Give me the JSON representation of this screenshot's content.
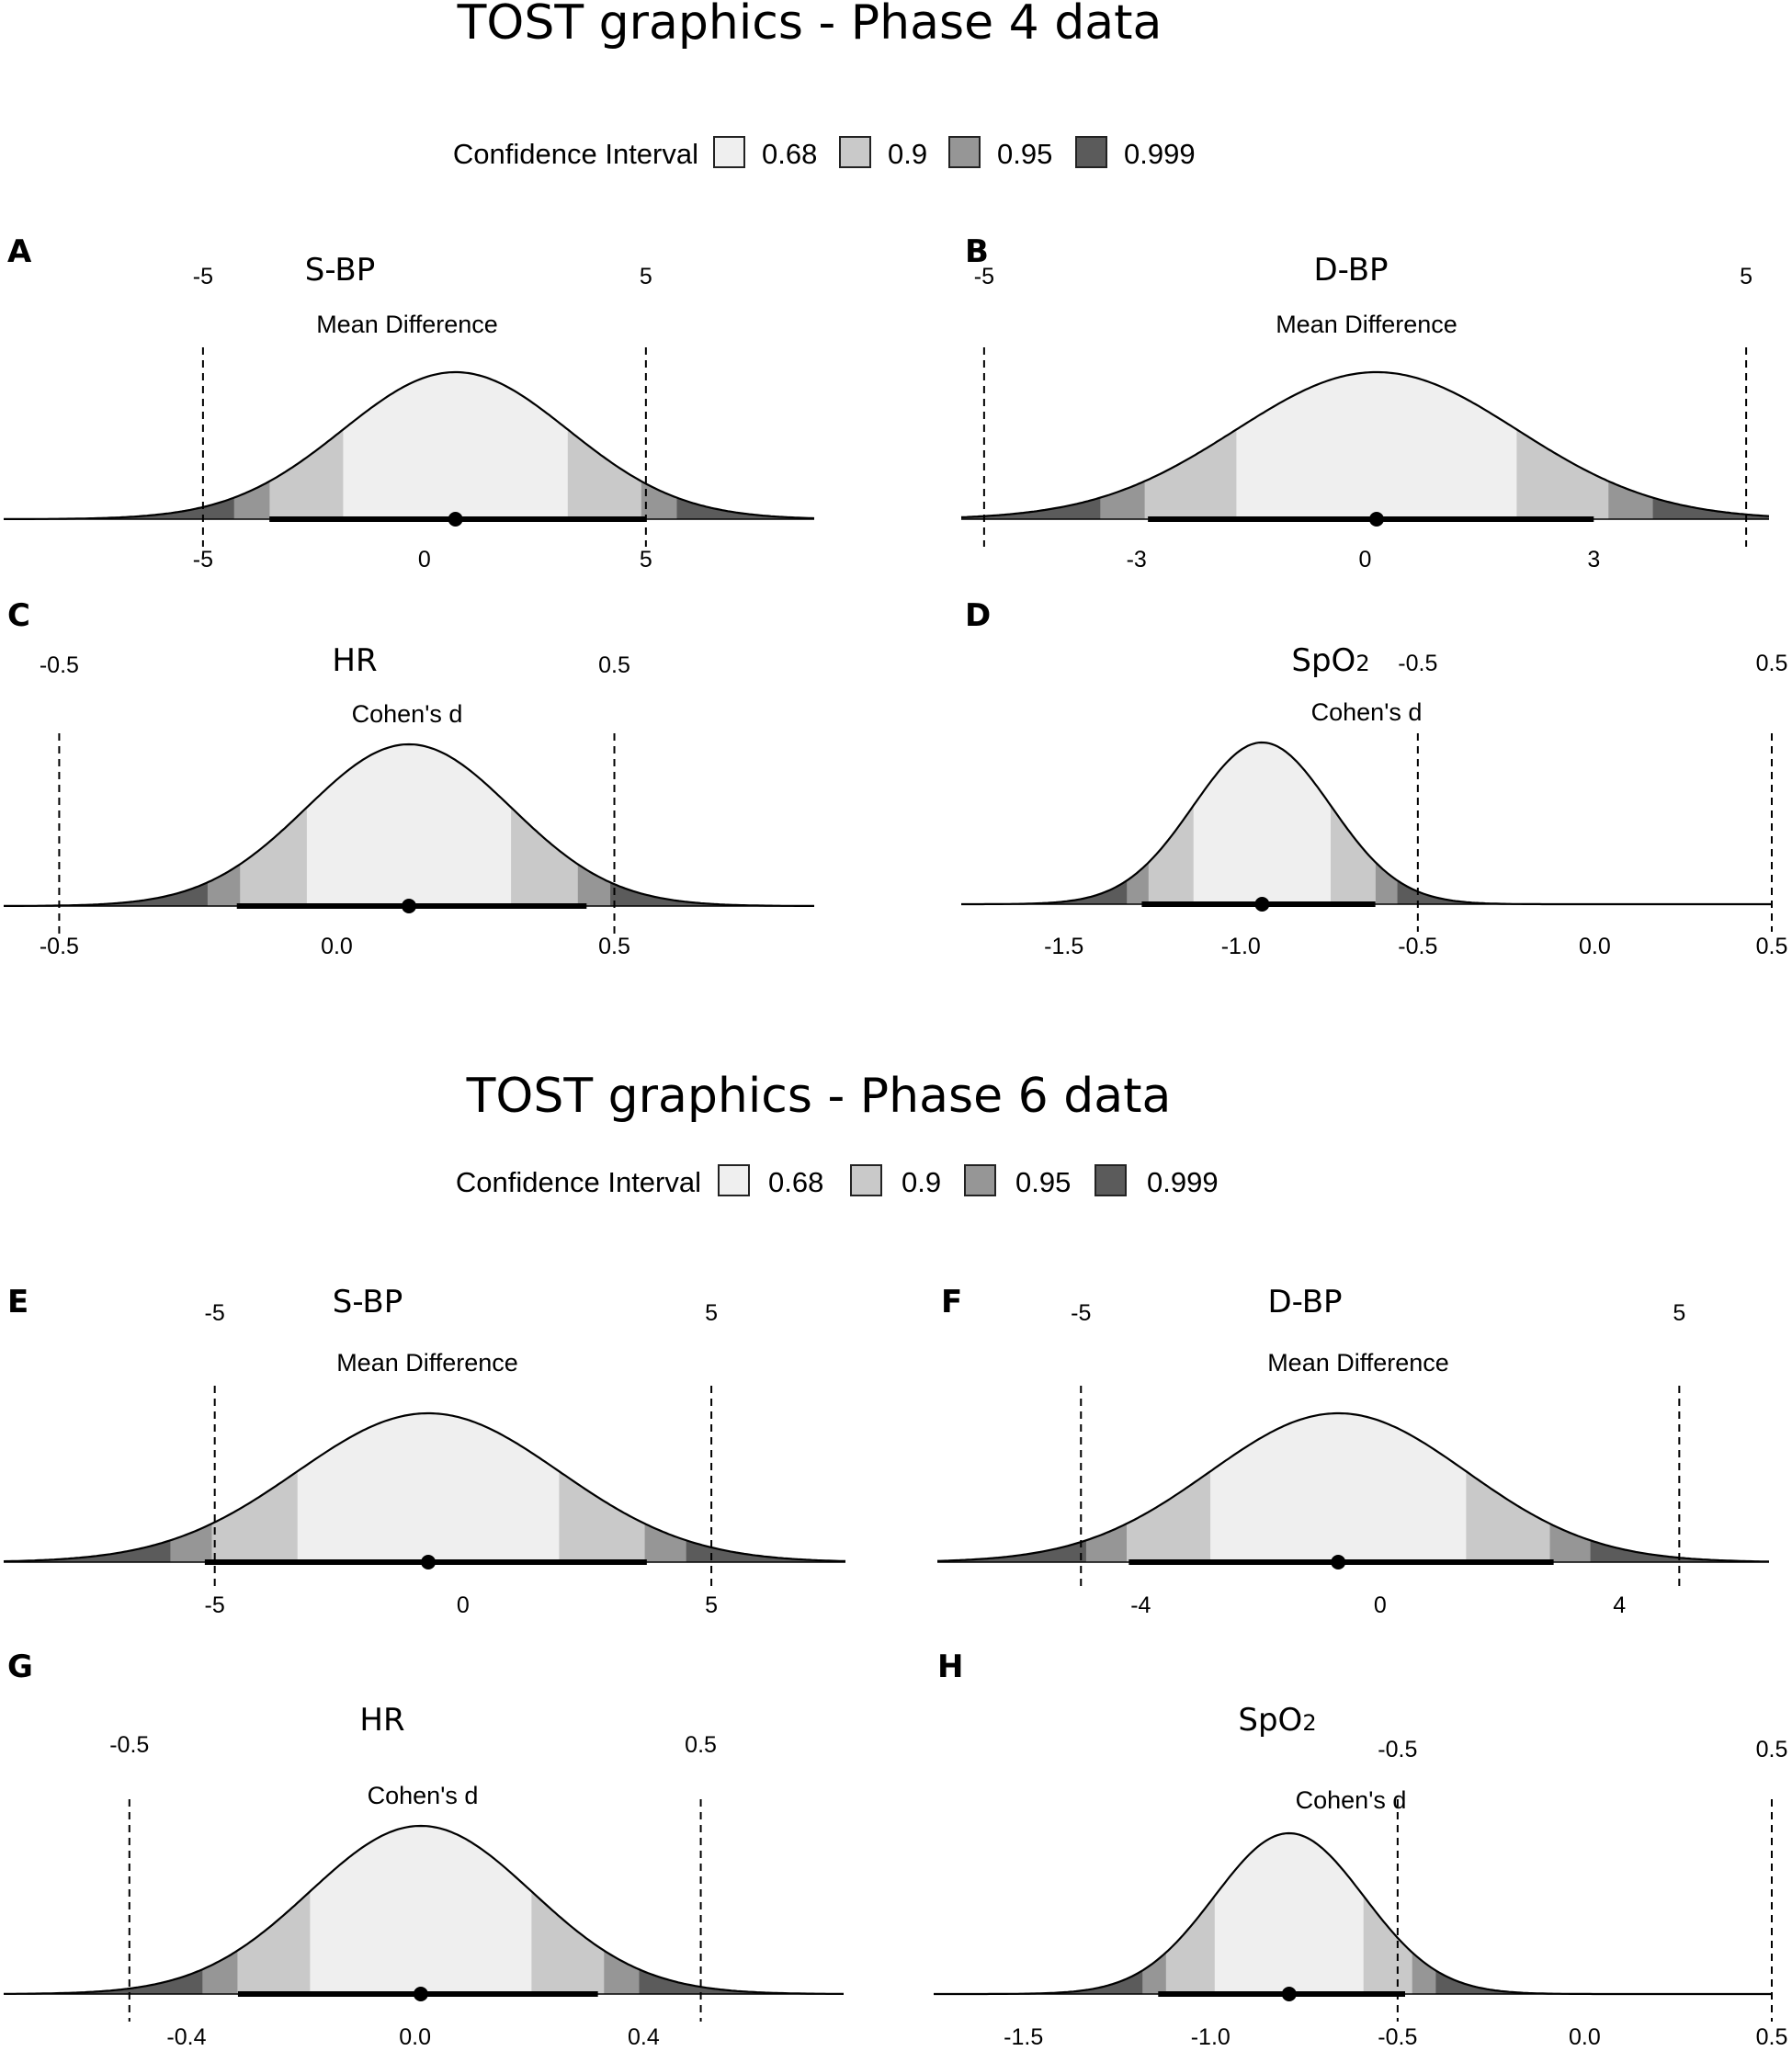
{
  "colors": {
    "ci_068": "#efefef",
    "ci_09": "#c9c9c9",
    "ci_095": "#969696",
    "ci_0999": "#5b5b5b",
    "line": "#000000"
  },
  "sections": [
    {
      "title": "TOST graphics - Phase 4 data",
      "legend": {
        "label": "Confidence Interval",
        "levels": [
          "0.68",
          "0.9",
          "0.95",
          "0.999"
        ]
      }
    },
    {
      "title": "TOST graphics - Phase 6 data",
      "legend": {
        "label": "Confidence Interval",
        "levels": [
          "0.68",
          "0.9",
          "0.95",
          "0.999"
        ]
      }
    }
  ],
  "chart_data": [
    {
      "panel": "A",
      "type": "area",
      "title": "S-BP",
      "subtitle": "Mean Difference",
      "mean": 0.7,
      "sd": 2.55,
      "xlim": [
        -9.5,
        8.8
      ],
      "bounds": [
        -5,
        5
      ],
      "bound_labels": [
        "-5",
        "5"
      ],
      "ci90": [
        -3.5,
        5.0
      ],
      "ticks": [
        -5,
        0,
        5
      ],
      "tick_labels": [
        "-5",
        "0",
        "5"
      ]
    },
    {
      "panel": "B",
      "type": "area",
      "title": "D-BP",
      "subtitle": "Mean Difference",
      "mean": 0.15,
      "sd": 1.85,
      "xlim": [
        -5.3,
        5.3
      ],
      "bounds": [
        -5,
        5
      ],
      "bound_labels": [
        "-5",
        "5"
      ],
      "ci90": [
        -2.85,
        3.0
      ],
      "ticks": [
        -3,
        0,
        3
      ],
      "tick_labels": [
        "-3",
        "0",
        "3"
      ]
    },
    {
      "panel": "C",
      "type": "area",
      "title": "HR",
      "subtitle": "Cohen's d",
      "mean": 0.13,
      "sd": 0.185,
      "xlim": [
        -0.6,
        0.86
      ],
      "bounds": [
        -0.5,
        0.5
      ],
      "bound_labels": [
        "-0.5",
        "0.5"
      ],
      "ci90": [
        -0.18,
        0.45
      ],
      "ticks": [
        -0.5,
        0.0,
        0.5
      ],
      "tick_labels": [
        "-0.5",
        "0.0",
        "0.5"
      ]
    },
    {
      "panel": "D",
      "type": "area",
      "title": "SpO2",
      "subtitle": "Cohen's d",
      "mean": -0.94,
      "sd": 0.195,
      "xlim": [
        -1.79,
        0.5
      ],
      "bounds": [
        -0.5,
        0.5
      ],
      "bound_labels": [
        "-0.5",
        "0.5"
      ],
      "ci90": [
        -1.28,
        -0.62
      ],
      "ticks": [
        -1.5,
        -1.0,
        -0.5,
        0.0,
        0.5
      ],
      "tick_labels": [
        "-1.5",
        "-1.0",
        "-0.5",
        "0.0",
        "0.5"
      ]
    },
    {
      "panel": "E",
      "type": "area",
      "title": "S-BP",
      "subtitle": "Mean Difference",
      "mean": -0.7,
      "sd": 2.65,
      "xlim": [
        -9.25,
        7.7
      ],
      "bounds": [
        -5,
        5
      ],
      "bound_labels": [
        "-5",
        "5"
      ],
      "ci90": [
        -5.2,
        3.7
      ],
      "ticks": [
        -5,
        0,
        5
      ],
      "tick_labels": [
        "-5",
        "0",
        "5"
      ]
    },
    {
      "panel": "F",
      "type": "area",
      "title": "D-BP",
      "subtitle": "Mean Difference",
      "mean": -0.7,
      "sd": 2.15,
      "xlim": [
        -7.4,
        6.5
      ],
      "bounds": [
        -5,
        5
      ],
      "bound_labels": [
        "-5",
        "5"
      ],
      "ci90": [
        -4.2,
        2.9
      ],
      "ticks": [
        -4,
        0,
        4
      ],
      "tick_labels": [
        "-4",
        "0",
        "4"
      ]
    },
    {
      "panel": "G",
      "type": "area",
      "title": "HR",
      "subtitle": "Cohen's d",
      "mean": 0.01,
      "sd": 0.195,
      "xlim": [
        -0.72,
        0.75
      ],
      "bounds": [
        -0.5,
        0.5
      ],
      "bound_labels": [
        "-0.5",
        "0.5"
      ],
      "ci90": [
        -0.31,
        0.32
      ],
      "ticks": [
        -0.4,
        0.0,
        0.4
      ],
      "tick_labels": [
        "-0.4",
        "0.0",
        "0.4"
      ]
    },
    {
      "panel": "H",
      "type": "area",
      "title": "SpO2",
      "subtitle": "Cohen's d",
      "mean": -0.79,
      "sd": 0.2,
      "xlim": [
        -1.74,
        0.5
      ],
      "bounds": [
        -0.5,
        0.5
      ],
      "bound_labels": [
        "-0.5",
        "0.5"
      ],
      "ci90": [
        -1.14,
        -0.48
      ],
      "ticks": [
        -1.5,
        -1.0,
        -0.5,
        0.0,
        0.5
      ],
      "tick_labels": [
        "-1.5",
        "-1.0",
        "-0.5",
        "0.0",
        "0.5"
      ]
    }
  ]
}
